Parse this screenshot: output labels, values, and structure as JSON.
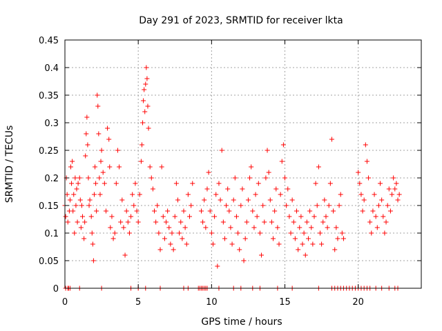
{
  "chart_data": {
    "type": "scatter",
    "title": "Day 291 of 2023, SRMTID for receiver lkta",
    "xlabel": "GPS time / hours",
    "ylabel": "SRMTID / TECUs",
    "xlim": [
      0,
      24.3
    ],
    "ylim": [
      0,
      0.45
    ],
    "xticks": [
      0,
      5,
      10,
      15,
      20
    ],
    "xtick_labels": [
      "0",
      "5",
      "10",
      "15",
      "20"
    ],
    "yticks": [
      0,
      0.05,
      0.1,
      0.15,
      0.2,
      0.25,
      0.3,
      0.35,
      0.4,
      0.45
    ],
    "ytick_labels": [
      "0",
      "0.05",
      "0.1",
      "0.15",
      "0.2",
      "0.25",
      "0.3",
      "0.35",
      "0.4",
      "0.45"
    ],
    "grid": true,
    "marker": "plus",
    "color": "#ff0000",
    "series": [
      {
        "points": [
          [
            0.0,
            0.15
          ],
          [
            0.05,
            0.13
          ],
          [
            0.1,
            0.2
          ],
          [
            0.15,
            0.17
          ],
          [
            0.2,
            0.12
          ],
          [
            0.3,
            0.14
          ],
          [
            0.35,
            0.16
          ],
          [
            0.4,
            0.22
          ],
          [
            0.45,
            0.19
          ],
          [
            0.5,
            0.23
          ],
          [
            0.55,
            0.14
          ],
          [
            0.6,
            0.17
          ],
          [
            0.65,
            0.1
          ],
          [
            0.7,
            0.2
          ],
          [
            0.75,
            0.15
          ],
          [
            0.8,
            0.18
          ],
          [
            0.85,
            0.12
          ],
          [
            0.9,
            0.19
          ],
          [
            1.0,
            0.2
          ],
          [
            1.05,
            0.16
          ],
          [
            1.1,
            0.11
          ],
          [
            1.15,
            0.15
          ],
          [
            1.2,
            0.13
          ],
          [
            1.3,
            0.09
          ],
          [
            1.35,
            0.12
          ],
          [
            1.4,
            0.24
          ],
          [
            1.45,
            0.28
          ],
          [
            1.5,
            0.31
          ],
          [
            1.55,
            0.26
          ],
          [
            1.6,
            0.2
          ],
          [
            1.65,
            0.15
          ],
          [
            1.7,
            0.16
          ],
          [
            1.8,
            0.13
          ],
          [
            1.85,
            0.1
          ],
          [
            1.9,
            0.08
          ],
          [
            1.95,
            0.05
          ],
          [
            2.0,
            0.17
          ],
          [
            2.05,
            0.22
          ],
          [
            2.1,
            0.19
          ],
          [
            2.15,
            0.14
          ],
          [
            2.2,
            0.35
          ],
          [
            2.25,
            0.33
          ],
          [
            2.3,
            0.28
          ],
          [
            2.35,
            0.2
          ],
          [
            2.4,
            0.17
          ],
          [
            2.45,
            0.23
          ],
          [
            2.5,
            0.25
          ],
          [
            2.6,
            0.21
          ],
          [
            2.7,
            0.19
          ],
          [
            2.8,
            0.14
          ],
          [
            2.9,
            0.29
          ],
          [
            3.0,
            0.27
          ],
          [
            3.05,
            0.22
          ],
          [
            3.1,
            0.11
          ],
          [
            3.2,
            0.13
          ],
          [
            3.3,
            0.09
          ],
          [
            3.4,
            0.1
          ],
          [
            3.5,
            0.19
          ],
          [
            3.6,
            0.25
          ],
          [
            3.7,
            0.22
          ],
          [
            3.8,
            0.12
          ],
          [
            3.9,
            0.16
          ],
          [
            4.0,
            0.11
          ],
          [
            4.1,
            0.06
          ],
          [
            4.2,
            0.14
          ],
          [
            4.3,
            0.12
          ],
          [
            4.4,
            0.1
          ],
          [
            4.5,
            0.13
          ],
          [
            4.6,
            0.17
          ],
          [
            4.7,
            0.15
          ],
          [
            4.8,
            0.19
          ],
          [
            4.9,
            0.14
          ],
          [
            5.0,
            0.12
          ],
          [
            5.1,
            0.17
          ],
          [
            5.2,
            0.23
          ],
          [
            5.25,
            0.26
          ],
          [
            5.3,
            0.3
          ],
          [
            5.35,
            0.34
          ],
          [
            5.4,
            0.36
          ],
          [
            5.45,
            0.32
          ],
          [
            5.5,
            0.37
          ],
          [
            5.55,
            0.4
          ],
          [
            5.6,
            0.38
          ],
          [
            5.65,
            0.33
          ],
          [
            5.7,
            0.29
          ],
          [
            5.8,
            0.22
          ],
          [
            5.9,
            0.2
          ],
          [
            6.0,
            0.18
          ],
          [
            6.1,
            0.14
          ],
          [
            6.2,
            0.12
          ],
          [
            6.3,
            0.15
          ],
          [
            6.4,
            0.1
          ],
          [
            6.5,
            0.07
          ],
          [
            6.6,
            0.22
          ],
          [
            6.7,
            0.13
          ],
          [
            6.8,
            0.09
          ],
          [
            6.9,
            0.12
          ],
          [
            7.0,
            0.14
          ],
          [
            7.1,
            0.11
          ],
          [
            7.2,
            0.08
          ],
          [
            7.3,
            0.1
          ],
          [
            7.4,
            0.07
          ],
          [
            7.5,
            0.13
          ],
          [
            7.6,
            0.19
          ],
          [
            7.7,
            0.16
          ],
          [
            7.8,
            0.1
          ],
          [
            7.9,
            0.12
          ],
          [
            8.0,
            0.09
          ],
          [
            8.1,
            0.14
          ],
          [
            8.2,
            0.11
          ],
          [
            8.3,
            0.08
          ],
          [
            8.4,
            0.17
          ],
          [
            8.5,
            0.13
          ],
          [
            8.6,
            0.15
          ],
          [
            8.7,
            0.19
          ],
          [
            9.3,
            0.14
          ],
          [
            9.4,
            0.12
          ],
          [
            9.5,
            0.16
          ],
          [
            9.6,
            0.11
          ],
          [
            9.7,
            0.18
          ],
          [
            9.8,
            0.21
          ],
          [
            9.9,
            0.14
          ],
          [
            10.0,
            0.1
          ],
          [
            10.1,
            0.08
          ],
          [
            10.2,
            0.13
          ],
          [
            10.3,
            0.17
          ],
          [
            10.4,
            0.04
          ],
          [
            10.5,
            0.19
          ],
          [
            10.6,
            0.16
          ],
          [
            10.7,
            0.25
          ],
          [
            10.8,
            0.12
          ],
          [
            10.9,
            0.09
          ],
          [
            11.0,
            0.15
          ],
          [
            11.1,
            0.18
          ],
          [
            11.2,
            0.14
          ],
          [
            11.3,
            0.11
          ],
          [
            11.4,
            0.08
          ],
          [
            11.5,
            0.16
          ],
          [
            11.6,
            0.2
          ],
          [
            11.7,
            0.13
          ],
          [
            11.8,
            0.1
          ],
          [
            11.9,
            0.07
          ],
          [
            12.0,
            0.15
          ],
          [
            12.1,
            0.18
          ],
          [
            12.2,
            0.05
          ],
          [
            12.3,
            0.09
          ],
          [
            12.4,
            0.12
          ],
          [
            12.5,
            0.16
          ],
          [
            12.6,
            0.2
          ],
          [
            12.7,
            0.22
          ],
          [
            12.8,
            0.14
          ],
          [
            12.9,
            0.11
          ],
          [
            13.0,
            0.17
          ],
          [
            13.1,
            0.13
          ],
          [
            13.2,
            0.19
          ],
          [
            13.3,
            0.1
          ],
          [
            13.4,
            0.06
          ],
          [
            13.5,
            0.15
          ],
          [
            13.6,
            0.12
          ],
          [
            13.7,
            0.2
          ],
          [
            13.8,
            0.25
          ],
          [
            13.9,
            0.21
          ],
          [
            14.0,
            0.16
          ],
          [
            14.1,
            0.12
          ],
          [
            14.2,
            0.09
          ],
          [
            14.3,
            0.14
          ],
          [
            14.4,
            0.18
          ],
          [
            14.5,
            0.11
          ],
          [
            14.6,
            0.08
          ],
          [
            14.7,
            0.17
          ],
          [
            14.8,
            0.23
          ],
          [
            14.9,
            0.26
          ],
          [
            15.0,
            0.2
          ],
          [
            15.1,
            0.15
          ],
          [
            15.2,
            0.18
          ],
          [
            15.3,
            0.13
          ],
          [
            15.4,
            0.1
          ],
          [
            15.5,
            0.16
          ],
          [
            15.6,
            0.12
          ],
          [
            15.7,
            0.09
          ],
          [
            15.8,
            0.14
          ],
          [
            15.9,
            0.07
          ],
          [
            16.0,
            0.11
          ],
          [
            16.1,
            0.13
          ],
          [
            16.2,
            0.08
          ],
          [
            16.3,
            0.1
          ],
          [
            16.4,
            0.06
          ],
          [
            16.5,
            0.12
          ],
          [
            16.6,
            0.09
          ],
          [
            16.7,
            0.14
          ],
          [
            16.8,
            0.11
          ],
          [
            16.9,
            0.08
          ],
          [
            17.0,
            0.13
          ],
          [
            17.1,
            0.19
          ],
          [
            17.2,
            0.15
          ],
          [
            17.3,
            0.22
          ],
          [
            17.4,
            0.1
          ],
          [
            17.5,
            0.08
          ],
          [
            17.6,
            0.12
          ],
          [
            17.7,
            0.16
          ],
          [
            17.8,
            0.13
          ],
          [
            17.9,
            0.11
          ],
          [
            18.0,
            0.15
          ],
          [
            18.1,
            0.19
          ],
          [
            18.2,
            0.27
          ],
          [
            18.3,
            0.14
          ],
          [
            18.4,
            0.07
          ],
          [
            18.5,
            0.11
          ],
          [
            18.6,
            0.09
          ],
          [
            18.7,
            0.15
          ],
          [
            18.8,
            0.17
          ],
          [
            18.9,
            0.1
          ],
          [
            19.0,
            0.09
          ],
          [
            20.0,
            0.21
          ],
          [
            20.1,
            0.19
          ],
          [
            20.2,
            0.17
          ],
          [
            20.3,
            0.14
          ],
          [
            20.4,
            0.16
          ],
          [
            20.5,
            0.26
          ],
          [
            20.6,
            0.23
          ],
          [
            20.7,
            0.2
          ],
          [
            20.8,
            0.12
          ],
          [
            20.9,
            0.1
          ],
          [
            21.0,
            0.14
          ],
          [
            21.1,
            0.17
          ],
          [
            21.2,
            0.13
          ],
          [
            21.3,
            0.11
          ],
          [
            21.4,
            0.15
          ],
          [
            21.5,
            0.19
          ],
          [
            21.6,
            0.16
          ],
          [
            21.7,
            0.13
          ],
          [
            21.8,
            0.1
          ],
          [
            21.9,
            0.12
          ],
          [
            22.0,
            0.15
          ],
          [
            22.1,
            0.18
          ],
          [
            22.2,
            0.14
          ],
          [
            22.3,
            0.17
          ],
          [
            22.4,
            0.2
          ],
          [
            22.5,
            0.18
          ],
          [
            22.6,
            0.19
          ],
          [
            22.7,
            0.16
          ],
          [
            22.8,
            0.17
          ]
        ]
      },
      {
        "points": [
          [
            0.05,
            0.0
          ],
          [
            0.2,
            0.0
          ],
          [
            0.25,
            0.0
          ],
          [
            0.35,
            0.0
          ],
          [
            1.0,
            0.0
          ],
          [
            2.5,
            0.0
          ],
          [
            4.5,
            0.0
          ],
          [
            5.0,
            0.0
          ],
          [
            5.5,
            0.0
          ],
          [
            6.5,
            0.0
          ],
          [
            8.1,
            0.0
          ],
          [
            8.4,
            0.0
          ],
          [
            9.1,
            0.0
          ],
          [
            9.2,
            0.0
          ],
          [
            9.3,
            0.0
          ],
          [
            9.4,
            0.0
          ],
          [
            9.5,
            0.0
          ],
          [
            9.6,
            0.0
          ],
          [
            9.7,
            0.0
          ],
          [
            10.5,
            0.0
          ],
          [
            11.5,
            0.0
          ],
          [
            12.0,
            0.0
          ],
          [
            12.8,
            0.0
          ],
          [
            13.3,
            0.0
          ],
          [
            14.5,
            0.0
          ],
          [
            15.5,
            0.0
          ],
          [
            17.3,
            0.0
          ],
          [
            18.2,
            0.0
          ],
          [
            18.4,
            0.0
          ],
          [
            18.6,
            0.0
          ],
          [
            18.8,
            0.0
          ],
          [
            19.0,
            0.0
          ],
          [
            19.2,
            0.0
          ],
          [
            19.4,
            0.0
          ],
          [
            19.6,
            0.0
          ],
          [
            19.8,
            0.0
          ],
          [
            20.0,
            0.0
          ],
          [
            20.2,
            0.0
          ],
          [
            20.4,
            0.0
          ],
          [
            20.6,
            0.0
          ],
          [
            20.8,
            0.0
          ],
          [
            21.2,
            0.0
          ],
          [
            21.6,
            0.0
          ],
          [
            22.1,
            0.0
          ],
          [
            22.5,
            0.0
          ],
          [
            22.7,
            0.0
          ]
        ]
      }
    ]
  }
}
